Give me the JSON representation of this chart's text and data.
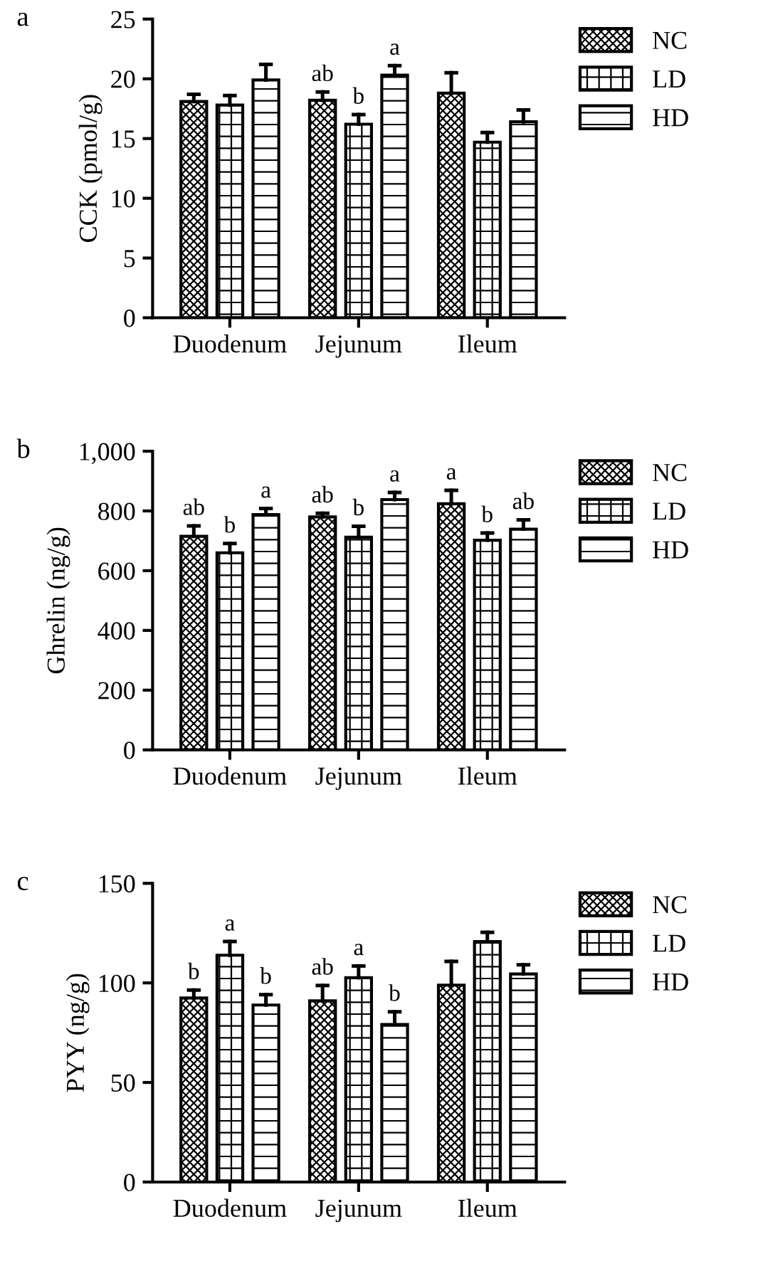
{
  "chart_data": [
    {
      "type": "bar",
      "title": "a",
      "ylabel": "CCK (pmol/g)",
      "categories": [
        "Duodenum",
        "Jejunum",
        "Ileum"
      ],
      "ylim": [
        0,
        25
      ],
      "yticks": [
        0,
        5,
        10,
        15,
        20,
        25
      ],
      "grid": false,
      "legend": "top right",
      "series": [
        {
          "name": "NC",
          "color": "#000000",
          "values": [
            18.1,
            18.2,
            18.8
          ],
          "errors": [
            [
              18.1,
              18.7
            ],
            [
              18.2,
              18.9
            ],
            [
              18.8,
              20.5
            ]
          ],
          "value_labels": [
            null,
            "ab",
            null
          ]
        },
        {
          "name": "LD",
          "color": "#000000",
          "values": [
            17.8,
            16.2,
            14.7
          ],
          "errors": [
            [
              17.8,
              18.6
            ],
            [
              16.2,
              17.0
            ],
            [
              14.7,
              15.5
            ]
          ],
          "value_labels": [
            null,
            "b",
            null
          ]
        },
        {
          "name": "HD",
          "color": "#000000",
          "values": [
            19.9,
            20.3,
            16.4
          ],
          "errors": [
            [
              19.9,
              21.2
            ],
            [
              20.3,
              21.1
            ],
            [
              16.4,
              17.4
            ]
          ],
          "value_labels": [
            null,
            "a",
            null
          ]
        }
      ]
    },
    {
      "type": "bar",
      "title": "b",
      "ylabel": "Ghrelin (ng/g)",
      "categories": [
        "Duodenum",
        "Jejunum",
        "Ileum"
      ],
      "ylim": [
        0,
        1000
      ],
      "yticks": [
        0,
        200,
        400,
        600,
        800,
        {
          "value": 1000,
          "label": "1,000"
        }
      ],
      "grid": false,
      "legend": "top right",
      "series": [
        {
          "name": "NC",
          "color": "#000000",
          "values": [
            715,
            780,
            824
          ],
          "errors": [
            [
              715,
              750
            ],
            [
              780,
              792
            ],
            [
              824,
              869
            ]
          ],
          "value_labels": [
            "ab",
            "ab",
            "a"
          ]
        },
        {
          "name": "LD",
          "color": "#000000",
          "values": [
            660,
            712,
            702
          ],
          "errors": [
            [
              660,
              691
            ],
            [
              712,
              749
            ],
            [
              702,
              726
            ]
          ],
          "value_labels": [
            "b",
            "b",
            "b"
          ]
        },
        {
          "name": "HD",
          "color": "#000000",
          "values": [
            788,
            838,
            739
          ],
          "errors": [
            [
              788,
              808
            ],
            [
              838,
              862
            ],
            [
              739,
              770
            ]
          ],
          "value_labels": [
            "a",
            "a",
            "ab"
          ]
        }
      ]
    },
    {
      "type": "bar",
      "title": "c",
      "ylabel": "PYY (ng/g)",
      "categories": [
        "Duodenum",
        "Jejunum",
        "Ileum"
      ],
      "ylim": [
        0,
        150
      ],
      "yticks": [
        0,
        50,
        100,
        150
      ],
      "grid": false,
      "legend": "top right",
      "series": [
        {
          "name": "NC",
          "color": "#000000",
          "values": [
            92.4,
            91.0,
            98.9
          ],
          "errors": [
            [
              92.4,
              96.4
            ],
            [
              91.0,
              98.7
            ],
            [
              98.9,
              110.8
            ]
          ],
          "value_labels": [
            "b",
            "ab",
            null
          ]
        },
        {
          "name": "LD",
          "color": "#000000",
          "values": [
            113.9,
            102.6,
            120.8
          ],
          "errors": [
            [
              113.9,
              120.8
            ],
            [
              102.6,
              108.5
            ],
            [
              120.8,
              125.4
            ]
          ],
          "value_labels": [
            "a",
            "a",
            null
          ]
        },
        {
          "name": "HD",
          "color": "#000000",
          "values": [
            88.9,
            79.1,
            104.5
          ],
          "errors": [
            [
              88.9,
              94.1
            ],
            [
              79.1,
              85.5
            ],
            [
              104.5,
              109.1
            ]
          ],
          "value_labels": [
            "b",
            "b",
            null
          ]
        }
      ]
    }
  ]
}
